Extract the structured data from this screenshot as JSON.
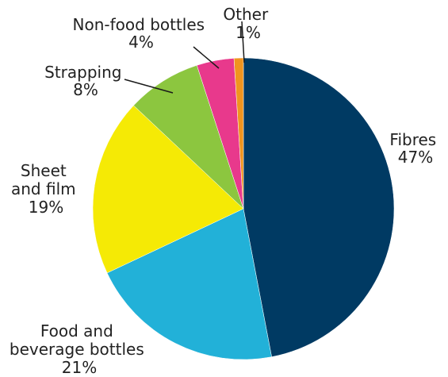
{
  "chart_data": {
    "type": "pie",
    "title": "",
    "slices": [
      {
        "label": "Fibres",
        "percent_label": "47%",
        "value": 47,
        "color": "#003a63"
      },
      {
        "label": "Food and beverage bottles",
        "percent_label": "21%",
        "value": 21,
        "color": "#22b1d8"
      },
      {
        "label": "Sheet and film",
        "percent_label": "19%",
        "value": 19,
        "color": "#f5ea05"
      },
      {
        "label": "Strapping",
        "percent_label": "8%",
        "value": 8,
        "color": "#8cc63f"
      },
      {
        "label": "Non-food bottles",
        "percent_label": "4%",
        "value": 4,
        "color": "#e8398c"
      },
      {
        "label": "Other",
        "percent_label": "1%",
        "value": 1,
        "color": "#f0941f"
      }
    ],
    "start_angle": "12 o'clock",
    "direction": "clockwise",
    "legend": "none"
  },
  "labels": {
    "fibres": {
      "line1": "Fibres",
      "line2": "47%"
    },
    "food": {
      "line1": "Food and",
      "line2": "beverage bottles",
      "line3": "21%"
    },
    "sheet": {
      "line1": "Sheet",
      "line2": "and film",
      "line3": "19%"
    },
    "strapping": {
      "line1": "Strapping",
      "line2": "8%"
    },
    "nonfood": {
      "line1": "Non-food bottles",
      "line2": "4%"
    },
    "other": {
      "line1": "Other",
      "line2": "1%"
    }
  }
}
